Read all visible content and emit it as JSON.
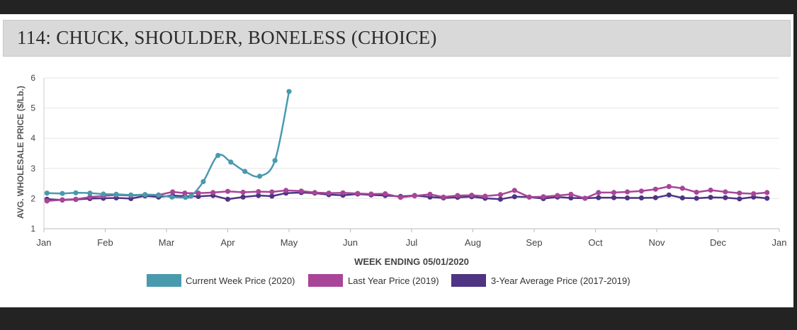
{
  "header": {
    "title": "114: CHUCK, SHOULDER, BONELESS (CHOICE)"
  },
  "chart_data": {
    "type": "line",
    "title": "114: CHUCK, SHOULDER, BONELESS (CHOICE)",
    "xlabel": "WEEK ENDING 05/01/2020",
    "ylabel": "AVG. WHOLESALE PRICE ($/Lb.)",
    "ylim": [
      1,
      6
    ],
    "xlim": [
      0,
      12
    ],
    "x_ticks": [
      "Jan",
      "Feb",
      "Mar",
      "Apr",
      "May",
      "Jun",
      "Jul",
      "Aug",
      "Sep",
      "Oct",
      "Nov",
      "Dec",
      "Jan"
    ],
    "y_ticks": [
      "1",
      "2",
      "3",
      "4",
      "5",
      "6"
    ],
    "grid": true,
    "legend_position": "bottom-center",
    "colors": {
      "current": "#4a9aae",
      "last_year": "#a84598",
      "avg3": "#4e3483"
    },
    "series": [
      {
        "key": "current",
        "name": "Current Week Price (2020)",
        "x": [
          0.05,
          0.3,
          0.52,
          0.75,
          0.97,
          1.18,
          1.42,
          1.65,
          1.87,
          2.09,
          2.31,
          2.4,
          2.6,
          2.84,
          3.05,
          3.28,
          3.52,
          3.77,
          4.0
        ],
        "y": [
          2.18,
          2.17,
          2.19,
          2.18,
          2.15,
          2.14,
          2.12,
          2.13,
          2.11,
          2.05,
          2.04,
          2.08,
          2.56,
          3.43,
          3.21,
          2.9,
          2.74,
          3.26,
          5.55
        ]
      },
      {
        "key": "last_year",
        "name": "Last Year Price (2019)",
        "x": [
          0.05,
          0.3,
          0.52,
          0.75,
          0.97,
          1.18,
          1.42,
          1.65,
          1.87,
          2.1,
          2.3,
          2.52,
          2.76,
          3.0,
          3.25,
          3.5,
          3.72,
          3.95,
          4.2,
          4.42,
          4.65,
          4.88,
          5.12,
          5.34,
          5.57,
          5.82,
          6.05,
          6.3,
          6.52,
          6.75,
          6.98,
          7.2,
          7.45,
          7.68,
          7.92,
          8.15,
          8.38,
          8.6,
          8.83,
          9.05,
          9.3,
          9.52,
          9.75,
          9.98,
          10.2,
          10.42,
          10.65,
          10.88,
          11.12,
          11.35,
          11.58,
          11.8
        ],
        "y": [
          1.92,
          1.96,
          1.98,
          2.05,
          2.09,
          2.12,
          2.1,
          2.13,
          2.12,
          2.22,
          2.18,
          2.18,
          2.2,
          2.24,
          2.21,
          2.23,
          2.22,
          2.27,
          2.25,
          2.2,
          2.18,
          2.19,
          2.17,
          2.15,
          2.16,
          2.04,
          2.09,
          2.14,
          2.05,
          2.1,
          2.11,
          2.08,
          2.13,
          2.27,
          2.05,
          2.06,
          2.1,
          2.14,
          2.01,
          2.2,
          2.2,
          2.22,
          2.25,
          2.31,
          2.4,
          2.34,
          2.21,
          2.28,
          2.22,
          2.18,
          2.16,
          2.2
        ]
      },
      {
        "key": "avg3",
        "name": "3-Year Average Price (2017-2019)",
        "x": [
          0.05,
          0.3,
          0.52,
          0.75,
          0.97,
          1.18,
          1.42,
          1.65,
          1.87,
          2.1,
          2.3,
          2.52,
          2.76,
          3.0,
          3.25,
          3.5,
          3.72,
          3.95,
          4.2,
          4.42,
          4.65,
          4.88,
          5.12,
          5.34,
          5.57,
          5.82,
          6.05,
          6.3,
          6.52,
          6.75,
          6.98,
          7.2,
          7.45,
          7.68,
          7.92,
          8.15,
          8.38,
          8.6,
          8.83,
          9.05,
          9.3,
          9.52,
          9.75,
          9.98,
          10.2,
          10.42,
          10.65,
          10.88,
          11.12,
          11.35,
          11.58,
          11.8
        ],
        "y": [
          1.98,
          1.95,
          1.97,
          2.0,
          2.01,
          2.02,
          2.0,
          2.09,
          2.05,
          2.1,
          2.08,
          2.07,
          2.1,
          1.98,
          2.05,
          2.1,
          2.08,
          2.18,
          2.2,
          2.18,
          2.13,
          2.11,
          2.15,
          2.12,
          2.1,
          2.07,
          2.1,
          2.05,
          2.02,
          2.04,
          2.06,
          2.01,
          1.98,
          2.06,
          2.05,
          2.0,
          2.05,
          2.02,
          2.01,
          2.03,
          2.03,
          2.02,
          2.02,
          2.03,
          2.12,
          2.02,
          2.01,
          2.04,
          2.03,
          1.99,
          2.05,
          2.01
        ]
      }
    ]
  }
}
